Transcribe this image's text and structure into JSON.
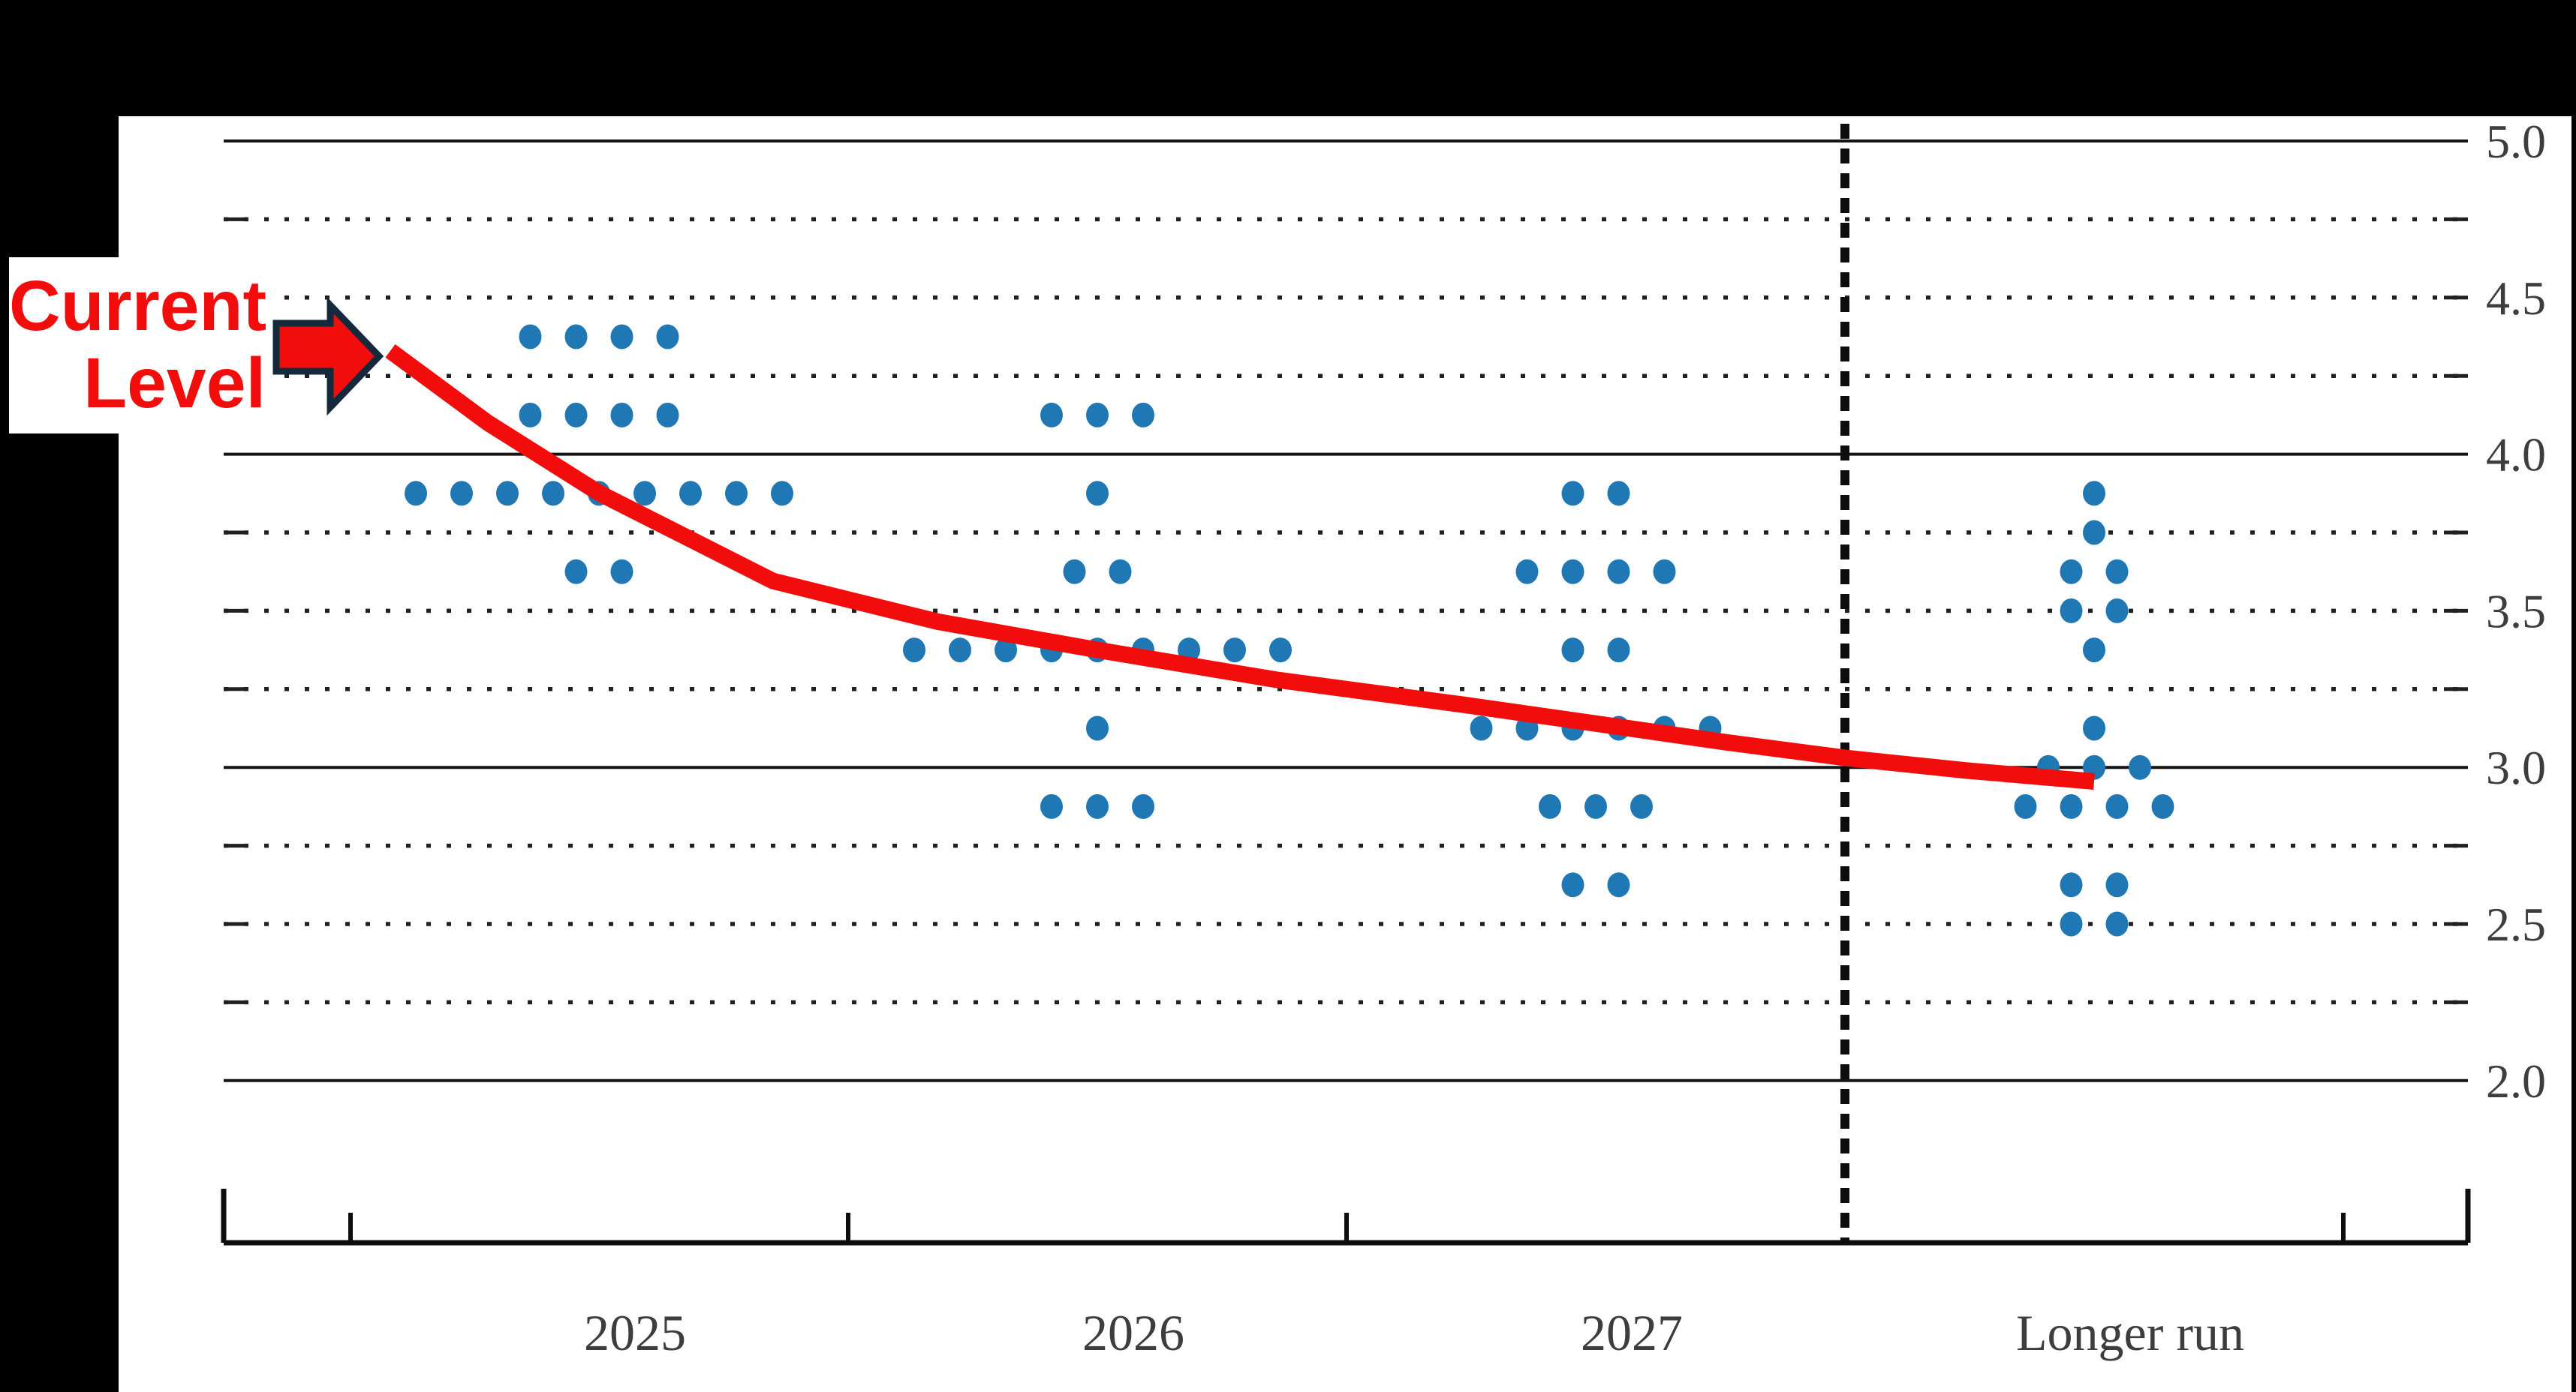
{
  "window": {
    "background": "#000000",
    "panel_background": "#ffffff"
  },
  "annotation": {
    "line1": "Current",
    "line2": "Level",
    "text_color": "#f20c0c",
    "arrow_fill": "#f20c0c",
    "arrow_outline": "#14293c"
  },
  "chart_data": {
    "type": "scatter",
    "subtype": "fomc-dot-plot",
    "categories": [
      "2025",
      "2026",
      "2027",
      "Longer run"
    ],
    "y_axis": {
      "tick_labels": [
        "5.0",
        "4.5",
        "4.0",
        "3.5",
        "3.0",
        "2.5",
        "2.0"
      ],
      "min": 2.0,
      "max": 5.0,
      "grid_step": 0.25,
      "solid_line_values": [
        5.0,
        4.0,
        3.0,
        2.0
      ],
      "label_side": "right"
    },
    "grid": "dotted-horizontal",
    "legend_position": "none",
    "dot_color": "#1f77b4",
    "dots": {
      "2025": {
        "4.375": 4,
        "4.125": 4,
        "3.875": 9,
        "3.625": 2
      },
      "2026": {
        "4.125": 3,
        "3.875": 1,
        "3.625": 2,
        "3.375": 9,
        "3.125": 1,
        "2.875": 3
      },
      "2027": {
        "3.875": 2,
        "3.625": 4,
        "3.375": 2,
        "3.125": 6,
        "2.875": 3,
        "2.625": 2
      },
      "Longer run": {
        "3.875": 1,
        "3.75": 1,
        "3.625": 2,
        "3.5": 2,
        "3.375": 1,
        "3.125": 1,
        "3.0": 3,
        "2.875": 4,
        "2.625": 2,
        "2.5": 2
      }
    },
    "separator": {
      "style": "dashed-vertical",
      "between": [
        "2027",
        "Longer run"
      ]
    },
    "current_level_line": {
      "label": "Current Level",
      "color": "#f20c0c",
      "start_value": 4.33,
      "end_value": 2.955,
      "medians_by_category": {
        "2025": 3.875,
        "2026": 3.375,
        "2027": 3.125,
        "Longer run": 3.0
      },
      "path": [
        [
          520,
          4.33
        ],
        [
          650,
          4.1
        ],
        [
          799,
          3.875
        ],
        [
          1030,
          3.595
        ],
        [
          1250,
          3.465
        ],
        [
          1462,
          3.375
        ],
        [
          1700,
          3.28
        ],
        [
          1950,
          3.2
        ],
        [
          2126,
          3.14
        ],
        [
          2300,
          3.08
        ],
        [
          2460,
          3.03
        ],
        [
          2620,
          2.99
        ],
        [
          2790,
          2.955
        ]
      ]
    }
  }
}
